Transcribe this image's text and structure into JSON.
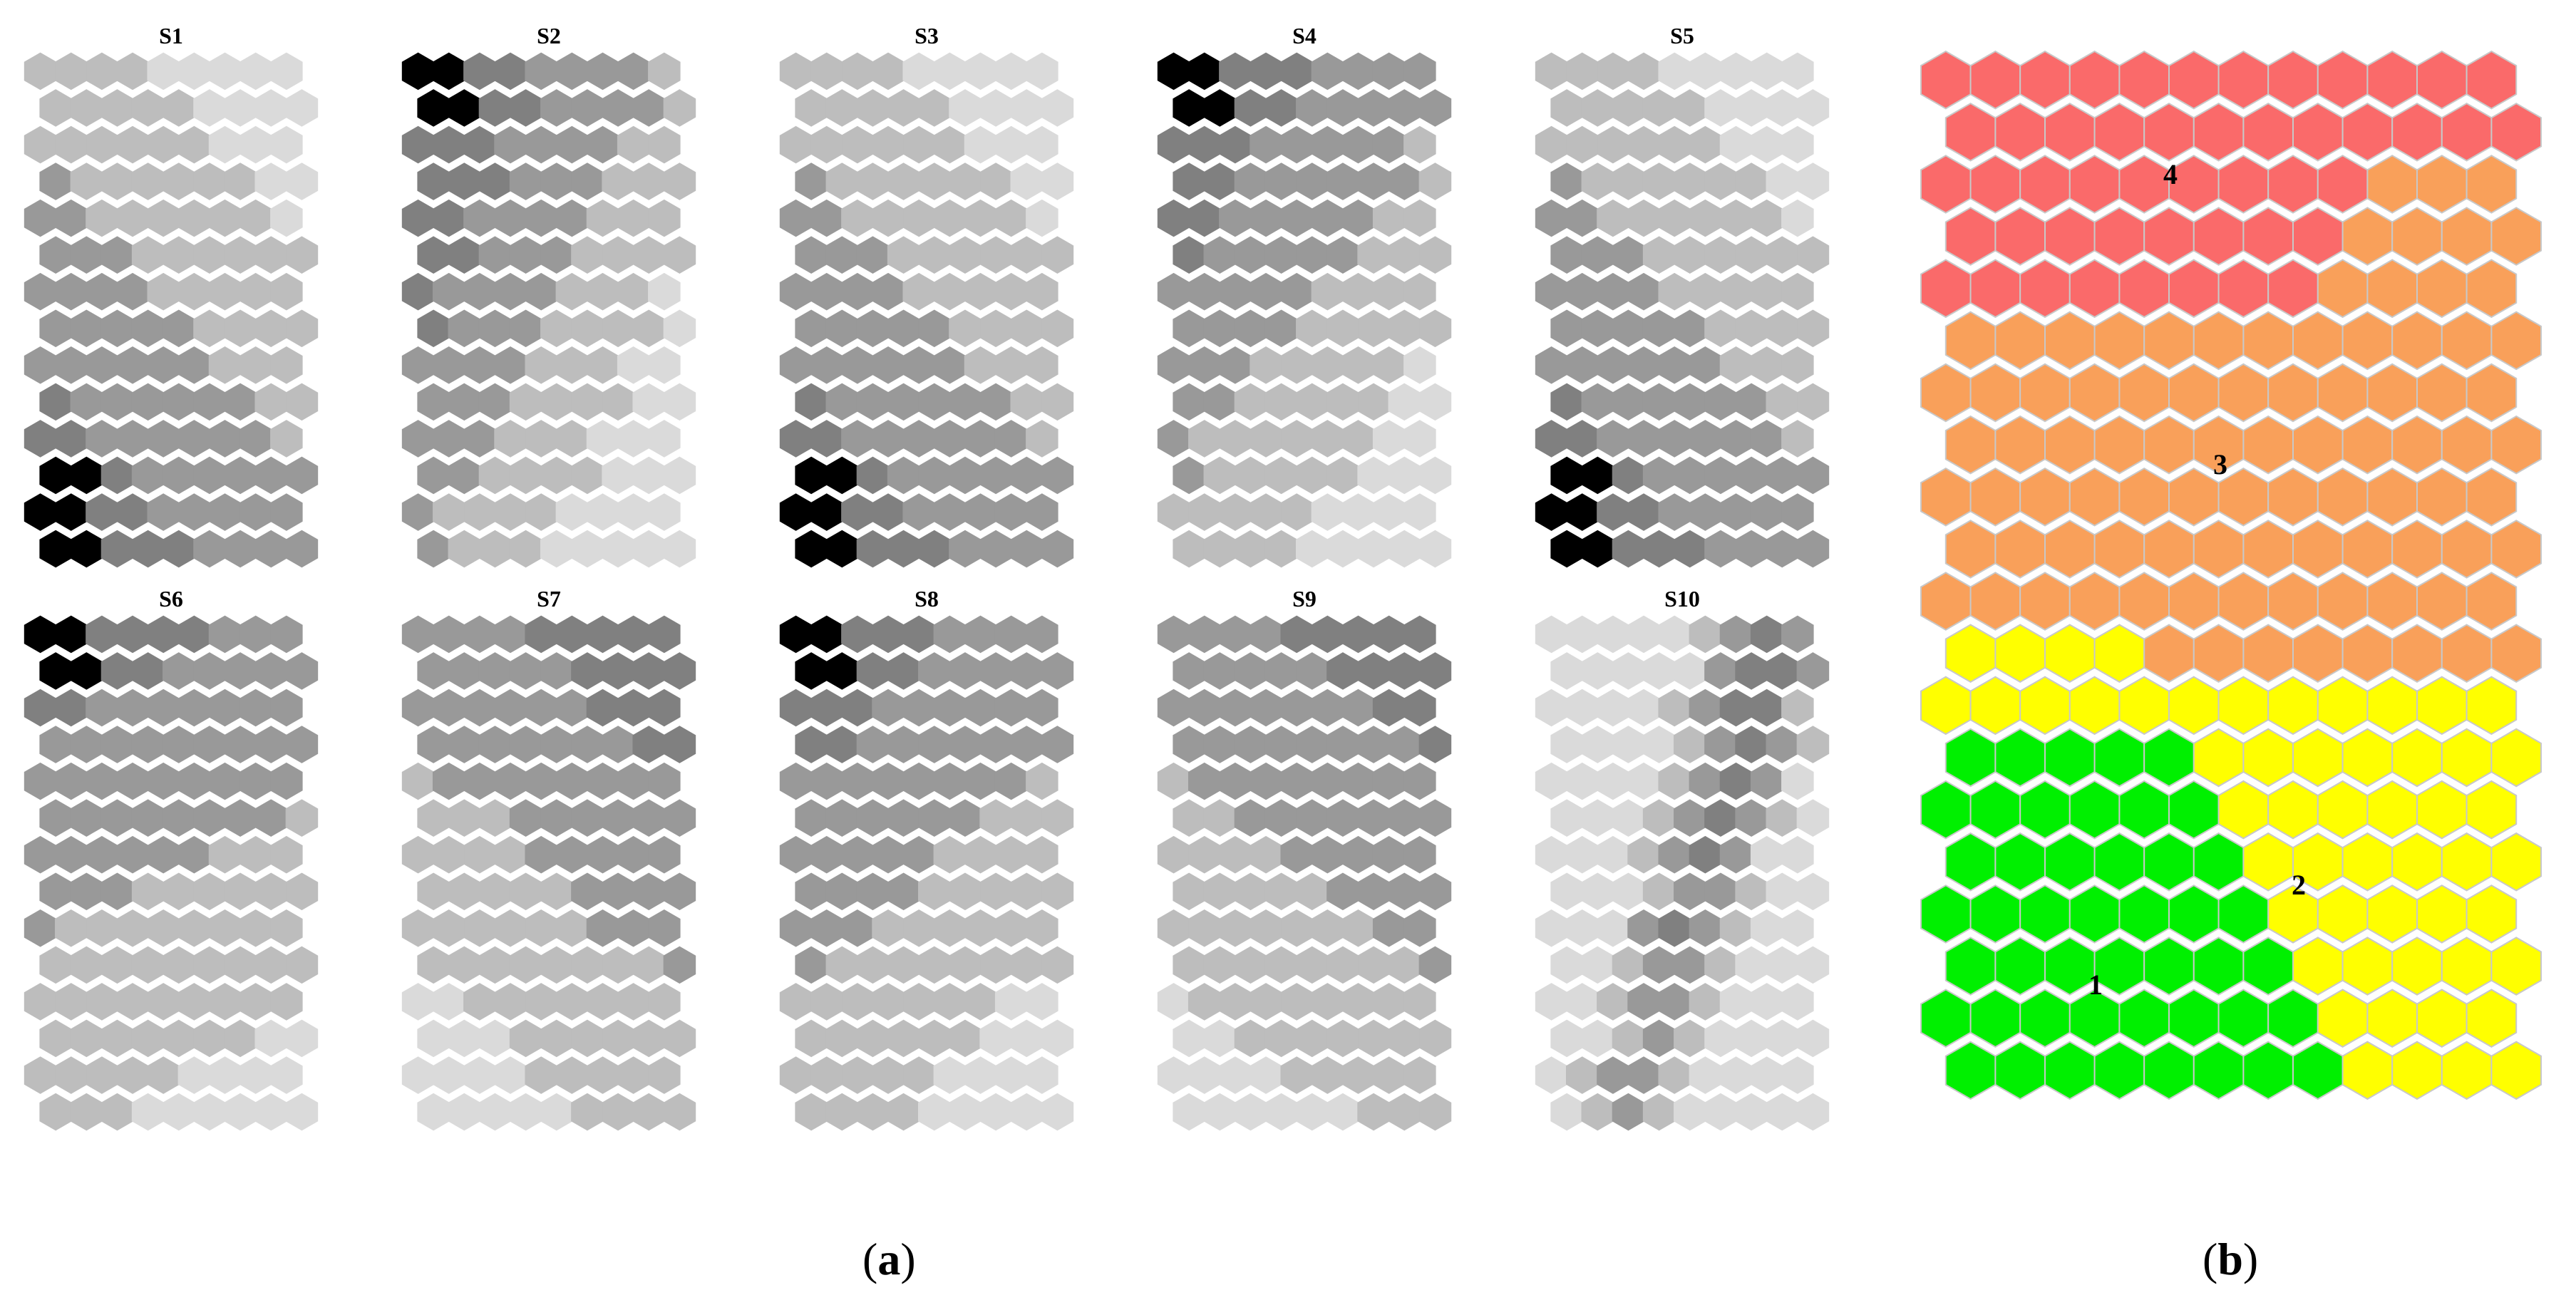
{
  "figure": {
    "part_a": {
      "label_open": "(",
      "label_letter": "a",
      "label_close": ")",
      "panels": [
        {
          "title": "S1"
        },
        {
          "title": "S2"
        },
        {
          "title": "S3"
        },
        {
          "title": "S4"
        },
        {
          "title": "S5"
        },
        {
          "title": "S6"
        },
        {
          "title": "S7"
        },
        {
          "title": "S8"
        },
        {
          "title": "S9"
        },
        {
          "title": "S10"
        }
      ]
    },
    "part_b": {
      "label_open": "(",
      "label_letter": "b",
      "label_close": ")",
      "clusters": [
        {
          "label": "1",
          "color": "#00f000"
        },
        {
          "label": "2",
          "color": "#ffff00"
        },
        {
          "label": "3",
          "color": "#f9a05a"
        },
        {
          "label": "4",
          "color": "#fa6a6a"
        }
      ]
    },
    "gray_levels": [
      "#000000",
      "#808080",
      "#999999",
      "#bdbdbd",
      "#dadada"
    ]
  }
}
